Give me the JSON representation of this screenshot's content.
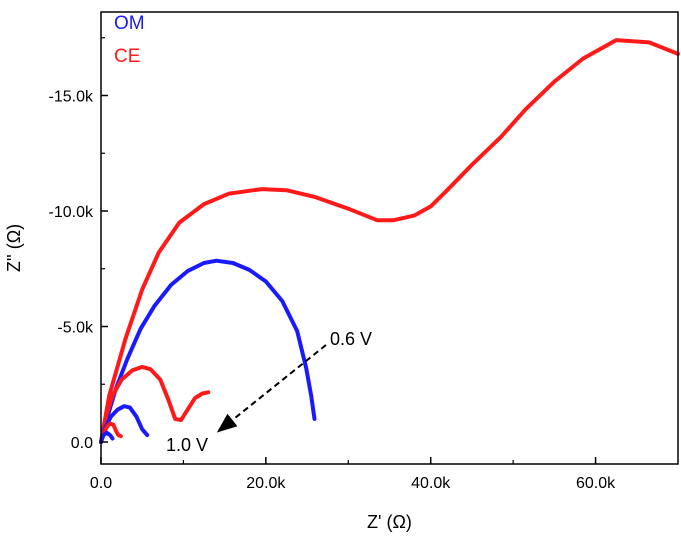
{
  "chart_data": {
    "type": "line",
    "xlabel": "Z' (Ω)",
    "ylabel": "Z'' (Ω)",
    "xlim": [
      0,
      70000
    ],
    "ylim": [
      0,
      -18000
    ],
    "x_ticks": [
      0,
      20000,
      40000,
      60000
    ],
    "x_tick_labels": [
      "0.0",
      "20.0k",
      "40.0k",
      "60.0k"
    ],
    "y_ticks": [
      0,
      -5000,
      -10000,
      -15000
    ],
    "y_tick_labels": [
      "0.0",
      "-5.0k",
      "-10.0k",
      "-15.0k"
    ],
    "grid": false,
    "legend": {
      "position": "top-left",
      "entries": [
        {
          "label": "OM",
          "color": "#1a1aff"
        },
        {
          "label": "CE",
          "color": "#ff1a1a"
        }
      ]
    },
    "series": [
      {
        "group": "CE",
        "color": "#ff1a1a",
        "points": [
          [
            0,
            0
          ],
          [
            1000,
            -2000
          ],
          [
            3000,
            -4500
          ],
          [
            5000,
            -6600
          ],
          [
            7000,
            -8200
          ],
          [
            9500,
            -9500
          ],
          [
            12500,
            -10300
          ],
          [
            15500,
            -10750
          ],
          [
            19500,
            -10950
          ],
          [
            22500,
            -10900
          ],
          [
            26000,
            -10600
          ],
          [
            30000,
            -10100
          ],
          [
            33500,
            -9600
          ],
          [
            35500,
            -9600
          ],
          [
            38000,
            -9800
          ],
          [
            40000,
            -10200
          ],
          [
            42000,
            -10900
          ],
          [
            45000,
            -12000
          ],
          [
            48500,
            -13200
          ],
          [
            51500,
            -14400
          ],
          [
            55000,
            -15600
          ],
          [
            58500,
            -16600
          ],
          [
            62500,
            -17400
          ],
          [
            66500,
            -17300
          ],
          [
            70000,
            -16800
          ]
        ]
      },
      {
        "group": "OM",
        "color": "#1a1aff",
        "points": [
          [
            0,
            0
          ],
          [
            700,
            -1000
          ],
          [
            1800,
            -2300
          ],
          [
            3200,
            -3600
          ],
          [
            4800,
            -4900
          ],
          [
            6500,
            -5900
          ],
          [
            8500,
            -6800
          ],
          [
            10500,
            -7400
          ],
          [
            12500,
            -7750
          ],
          [
            14000,
            -7850
          ],
          [
            16000,
            -7750
          ],
          [
            18000,
            -7450
          ],
          [
            20000,
            -6950
          ],
          [
            22000,
            -6100
          ],
          [
            23800,
            -4800
          ],
          [
            24900,
            -3200
          ],
          [
            25500,
            -2000
          ],
          [
            25900,
            -1000
          ]
        ]
      },
      {
        "group": "CE",
        "color": "#ff1a1a",
        "points": [
          [
            0,
            0
          ],
          [
            600,
            -1100
          ],
          [
            1400,
            -2000
          ],
          [
            2500,
            -2700
          ],
          [
            3800,
            -3100
          ],
          [
            5000,
            -3250
          ],
          [
            6000,
            -3150
          ],
          [
            7200,
            -2700
          ],
          [
            8200,
            -1800
          ],
          [
            9000,
            -1000
          ],
          [
            9700,
            -950
          ],
          [
            10500,
            -1400
          ],
          [
            11400,
            -1900
          ],
          [
            12300,
            -2100
          ],
          [
            13000,
            -2150
          ]
        ]
      },
      {
        "group": "OM",
        "color": "#1a1aff",
        "points": [
          [
            0,
            0
          ],
          [
            500,
            -600
          ],
          [
            1200,
            -1100
          ],
          [
            2000,
            -1400
          ],
          [
            2800,
            -1550
          ],
          [
            3500,
            -1500
          ],
          [
            4300,
            -1100
          ],
          [
            5000,
            -550
          ],
          [
            5600,
            -300
          ]
        ]
      },
      {
        "group": "CE",
        "color": "#ff1a1a",
        "points": [
          [
            0,
            0
          ],
          [
            300,
            -350
          ],
          [
            700,
            -650
          ],
          [
            1100,
            -800
          ],
          [
            1500,
            -750
          ],
          [
            1800,
            -500
          ],
          [
            2100,
            -300
          ],
          [
            2400,
            -250
          ]
        ]
      },
      {
        "group": "OM",
        "color": "#1a1aff",
        "points": [
          [
            0,
            0
          ],
          [
            300,
            -300
          ],
          [
            700,
            -400
          ],
          [
            1100,
            -300
          ],
          [
            1400,
            -150
          ]
        ]
      }
    ],
    "annotations": [
      {
        "text": "0.6 V"
      },
      {
        "text": "1.0 V"
      }
    ]
  }
}
